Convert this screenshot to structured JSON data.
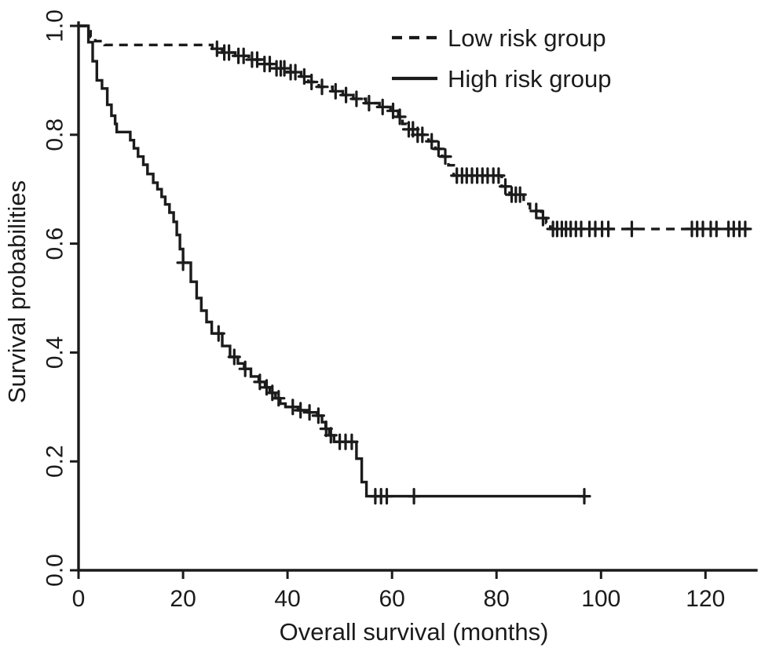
{
  "figure": {
    "kind": "kaplan-meier-survival-plot"
  },
  "chart_data": {
    "type": "line",
    "subtype": "kaplan-meier-step",
    "title": "",
    "xlabel": "Overall survival (months)",
    "ylabel": "Survival probabilities",
    "xlim": [
      0,
      130
    ],
    "ylim": [
      0.0,
      1.0
    ],
    "x_ticks": [
      0,
      20,
      40,
      60,
      80,
      100,
      120
    ],
    "y_ticks": [
      "0.0",
      "0.2",
      "0.4",
      "0.6",
      "0.8",
      "1.0"
    ],
    "grid": false,
    "legend_position": "top-right-inside",
    "colors": {
      "line": "#1b1b1b",
      "text": "#1b1b1b",
      "background": "#ffffff"
    },
    "legend": [
      {
        "label": "Low risk group",
        "line_style": "dashed"
      },
      {
        "label": "High risk group",
        "line_style": "solid"
      }
    ],
    "series": [
      {
        "name": "Low risk group",
        "line_style": "dashed",
        "end_month": 128.3,
        "steps": [
          [
            0,
            1.0
          ],
          [
            1.5,
            0.99
          ],
          [
            2.3,
            0.98
          ],
          [
            3.2,
            0.972
          ],
          [
            5,
            0.965
          ],
          [
            25.6,
            0.958
          ],
          [
            27.5,
            0.951
          ],
          [
            30,
            0.945
          ],
          [
            32.6,
            0.938
          ],
          [
            35,
            0.93
          ],
          [
            37.6,
            0.922
          ],
          [
            40,
            0.915
          ],
          [
            42.6,
            0.907
          ],
          [
            44,
            0.897
          ],
          [
            46,
            0.888
          ],
          [
            48.6,
            0.88
          ],
          [
            50.6,
            0.873
          ],
          [
            52.6,
            0.866
          ],
          [
            55,
            0.858
          ],
          [
            57.6,
            0.851
          ],
          [
            59.7,
            0.844
          ],
          [
            61.2,
            0.833
          ],
          [
            62,
            0.82
          ],
          [
            62.8,
            0.81
          ],
          [
            64.6,
            0.8
          ],
          [
            67,
            0.788
          ],
          [
            68.3,
            0.774
          ],
          [
            69.6,
            0.76
          ],
          [
            70.8,
            0.744
          ],
          [
            71.8,
            0.725
          ],
          [
            81,
            0.705
          ],
          [
            82.5,
            0.69
          ],
          [
            85.2,
            0.673
          ],
          [
            86.4,
            0.66
          ],
          [
            88.6,
            0.647
          ],
          [
            89.5,
            0.638
          ],
          [
            90.3,
            0.627
          ]
        ],
        "censor_marks": [
          [
            26.5,
            0.958
          ],
          [
            27.9,
            0.951
          ],
          [
            28.8,
            0.951
          ],
          [
            30.6,
            0.945
          ],
          [
            31.6,
            0.945
          ],
          [
            33.2,
            0.938
          ],
          [
            34.2,
            0.938
          ],
          [
            35.6,
            0.93
          ],
          [
            36.6,
            0.93
          ],
          [
            37.9,
            0.922
          ],
          [
            38.7,
            0.922
          ],
          [
            39.4,
            0.922
          ],
          [
            40.6,
            0.915
          ],
          [
            41.5,
            0.915
          ],
          [
            43.2,
            0.907
          ],
          [
            44.6,
            0.897
          ],
          [
            46.6,
            0.888
          ],
          [
            49.2,
            0.88
          ],
          [
            51.2,
            0.873
          ],
          [
            53.2,
            0.866
          ],
          [
            55.6,
            0.858
          ],
          [
            58.2,
            0.851
          ],
          [
            60.2,
            0.844
          ],
          [
            61.5,
            0.833
          ],
          [
            63.2,
            0.81
          ],
          [
            64,
            0.81
          ],
          [
            64.9,
            0.8
          ],
          [
            65.8,
            0.8
          ],
          [
            67.6,
            0.788
          ],
          [
            68.9,
            0.774
          ],
          [
            70.2,
            0.76
          ],
          [
            72.4,
            0.725
          ],
          [
            73.4,
            0.725
          ],
          [
            74.3,
            0.725
          ],
          [
            75.3,
            0.725
          ],
          [
            76.3,
            0.725
          ],
          [
            77.3,
            0.725
          ],
          [
            78.3,
            0.725
          ],
          [
            79.4,
            0.725
          ],
          [
            80.4,
            0.725
          ],
          [
            81.7,
            0.705
          ],
          [
            82.9,
            0.69
          ],
          [
            83.7,
            0.69
          ],
          [
            84.5,
            0.69
          ],
          [
            87.6,
            0.66
          ],
          [
            88.9,
            0.647
          ],
          [
            90.8,
            0.627
          ],
          [
            91.6,
            0.627
          ],
          [
            92.5,
            0.627
          ],
          [
            93.3,
            0.627
          ],
          [
            94.2,
            0.627
          ],
          [
            95.2,
            0.627
          ],
          [
            96.2,
            0.627
          ],
          [
            97.8,
            0.627
          ],
          [
            98.9,
            0.627
          ],
          [
            100.2,
            0.627
          ],
          [
            101.4,
            0.627
          ],
          [
            105.9,
            0.627
          ],
          [
            117.4,
            0.627
          ],
          [
            118.4,
            0.627
          ],
          [
            119.5,
            0.627
          ],
          [
            121,
            0.627
          ],
          [
            122.1,
            0.627
          ],
          [
            124.4,
            0.627
          ],
          [
            125.4,
            0.627
          ],
          [
            126.5,
            0.627
          ],
          [
            127.6,
            0.627
          ]
        ]
      },
      {
        "name": "High risk group",
        "line_style": "solid",
        "end_month": 97,
        "steps": [
          [
            0,
            1.0
          ],
          [
            1.9,
            0.97
          ],
          [
            2.7,
            0.935
          ],
          [
            3.5,
            0.9
          ],
          [
            4.5,
            0.885
          ],
          [
            5.5,
            0.855
          ],
          [
            6.3,
            0.835
          ],
          [
            7,
            0.82
          ],
          [
            7.3,
            0.805
          ],
          [
            9.9,
            0.79
          ],
          [
            10.6,
            0.775
          ],
          [
            11.4,
            0.76
          ],
          [
            12.4,
            0.745
          ],
          [
            13.2,
            0.728
          ],
          [
            14.3,
            0.712
          ],
          [
            15.1,
            0.7
          ],
          [
            15.9,
            0.686
          ],
          [
            16.6,
            0.672
          ],
          [
            17.4,
            0.657
          ],
          [
            18.2,
            0.64
          ],
          [
            18.8,
            0.616
          ],
          [
            19.4,
            0.59
          ],
          [
            20,
            0.565
          ],
          [
            21.5,
            0.53
          ],
          [
            22.6,
            0.5
          ],
          [
            23.5,
            0.477
          ],
          [
            24.5,
            0.456
          ],
          [
            25.5,
            0.435
          ],
          [
            27.5,
            0.412
          ],
          [
            29,
            0.392
          ],
          [
            30.5,
            0.38
          ],
          [
            31.7,
            0.37
          ],
          [
            33,
            0.356
          ],
          [
            34.5,
            0.346
          ],
          [
            35.7,
            0.336
          ],
          [
            36.6,
            0.326
          ],
          [
            37.7,
            0.316
          ],
          [
            38.6,
            0.306
          ],
          [
            39.6,
            0.3
          ],
          [
            42,
            0.294
          ],
          [
            44,
            0.29
          ],
          [
            45.7,
            0.284
          ],
          [
            46.6,
            0.272
          ],
          [
            47.3,
            0.26
          ],
          [
            48,
            0.248
          ],
          [
            48.9,
            0.236
          ],
          [
            53.2,
            0.205
          ],
          [
            54.2,
            0.162
          ],
          [
            55.1,
            0.136
          ]
        ],
        "censor_marks": [
          [
            20,
            0.565
          ],
          [
            26.8,
            0.435
          ],
          [
            29.8,
            0.392
          ],
          [
            31.9,
            0.37
          ],
          [
            34.7,
            0.346
          ],
          [
            36,
            0.336
          ],
          [
            37.1,
            0.326
          ],
          [
            38.3,
            0.316
          ],
          [
            41,
            0.3
          ],
          [
            42.5,
            0.294
          ],
          [
            44.2,
            0.29
          ],
          [
            45.9,
            0.284
          ],
          [
            47.4,
            0.26
          ],
          [
            48.3,
            0.248
          ],
          [
            50,
            0.236
          ],
          [
            51.1,
            0.236
          ],
          [
            52.3,
            0.236
          ],
          [
            56.8,
            0.136
          ],
          [
            57.9,
            0.136
          ],
          [
            59,
            0.136
          ],
          [
            64.2,
            0.136
          ],
          [
            96.8,
            0.136
          ]
        ]
      }
    ]
  }
}
